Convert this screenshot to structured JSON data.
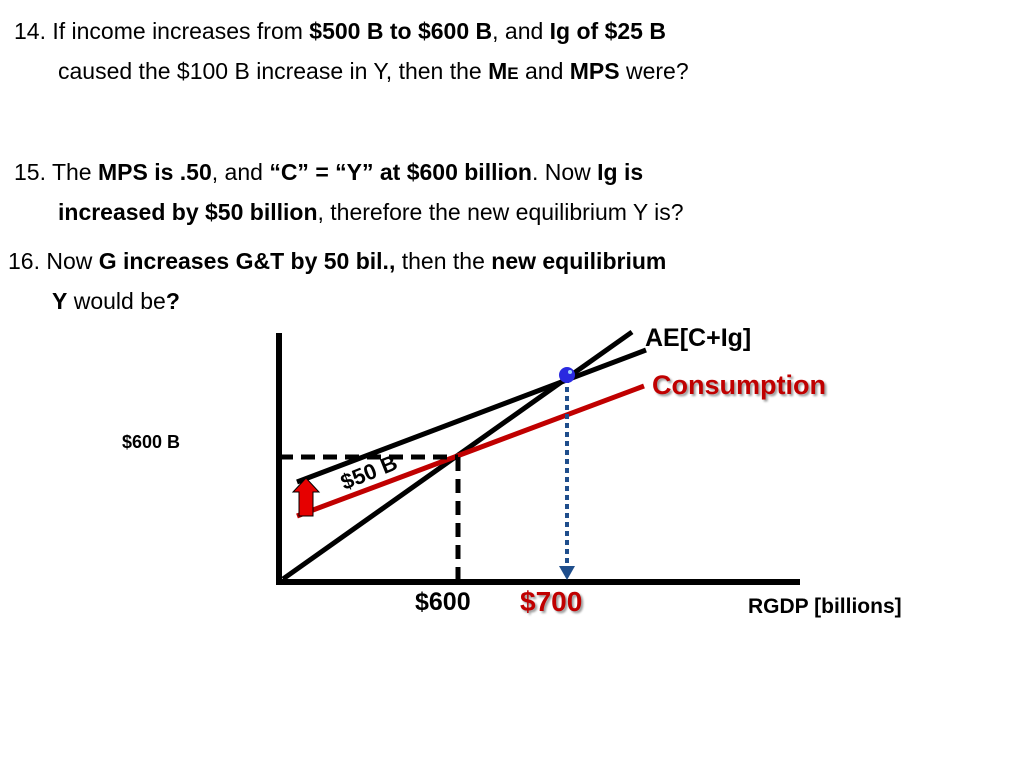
{
  "questions": {
    "q14": {
      "l1_a": "14. If income increases from ",
      "l1_b": "$500 B to $600 B",
      "l1_c": ", and ",
      "l1_d": "Ig of $25 B",
      "l2_a": "caused the $100 B increase in Y, then the ",
      "l2_b": "M",
      "l2_c": "E",
      "l2_d": " and ",
      "l2_e": "MPS",
      "l2_f": " were?"
    },
    "q15": {
      "l1_a": "15. The ",
      "l1_b": "MPS is .50",
      "l1_c": ", and ",
      "l1_d": "“C” = “Y” at $600 billion",
      "l1_e": ". Now ",
      "l1_f": "Ig is",
      "l2_a": "increased by $50 billion",
      "l2_b": ", therefore the new equilibrium Y is?"
    },
    "q16": {
      "l1_a": "16. Now ",
      "l1_b": "G increases G&T by 50 bil.,",
      "l1_c": " then the ",
      "l1_d": "new equilibrium",
      "l2_a": "Y",
      "l2_b": " would be",
      "l2_c": "?"
    }
  },
  "graph": {
    "y_label": "$600 B",
    "x_label": "RGDP [billions]",
    "ae_label": "AE[C+Ig]",
    "consumption_label": "Consumption",
    "shift_label": "$50 B",
    "x_tick_old": "$600",
    "x_tick_new": "$700"
  },
  "colors": {
    "text": "#000000",
    "consumption": "#c00000",
    "arrow_fill": "#e60000",
    "guide_dotted": "#1f4e8c",
    "equilibrium_point": "#2a2ae0"
  }
}
